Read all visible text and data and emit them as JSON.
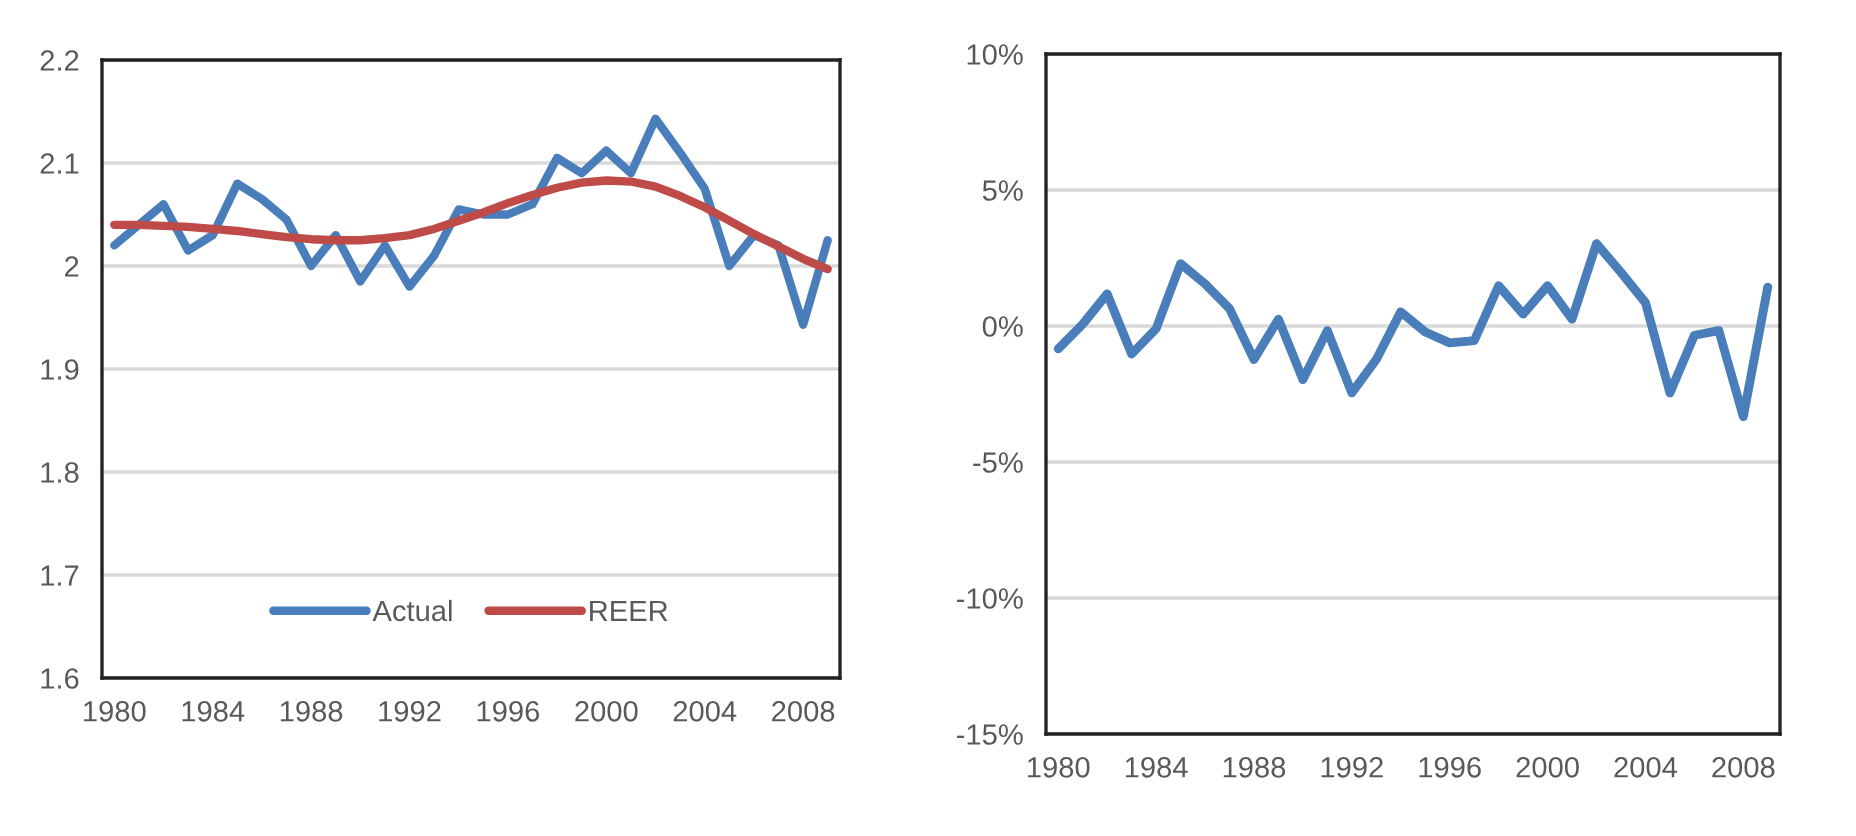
{
  "chart_data": [
    {
      "type": "line",
      "x": [
        1980,
        1981,
        1982,
        1983,
        1984,
        1985,
        1986,
        1987,
        1988,
        1989,
        1990,
        1991,
        1992,
        1993,
        1994,
        1995,
        1996,
        1997,
        1998,
        1999,
        2000,
        2001,
        2002,
        2003,
        2004,
        2005,
        2006,
        2007,
        2008,
        2009
      ],
      "series": [
        {
          "name": "Actual",
          "color": "#4a7ebb",
          "values": [
            2.02,
            2.04,
            2.06,
            2.015,
            2.03,
            2.08,
            2.065,
            2.045,
            2.0,
            2.03,
            1.985,
            2.02,
            1.98,
            2.01,
            2.055,
            2.05,
            2.05,
            2.06,
            2.105,
            2.09,
            2.112,
            2.09,
            2.143,
            2.11,
            2.075,
            2.0,
            2.03,
            2.02,
            1.943,
            2.025
          ]
        },
        {
          "name": "REER",
          "color": "#be4b48",
          "values": [
            2.04,
            2.04,
            2.039,
            2.038,
            2.036,
            2.034,
            2.031,
            2.028,
            2.026,
            2.025,
            2.025,
            2.027,
            2.03,
            2.036,
            2.044,
            2.052,
            2.061,
            2.069,
            2.076,
            2.081,
            2.083,
            2.082,
            2.077,
            2.068,
            2.057,
            2.044,
            2.031,
            2.019,
            2.007,
            1.997
          ]
        }
      ],
      "xlim": [
        1979.5,
        2009.5
      ],
      "xticks": [
        1980,
        1984,
        1988,
        1992,
        1996,
        2000,
        2004,
        2008
      ],
      "ylim": [
        1.6,
        2.2
      ],
      "yticks": [
        1.6,
        1.7,
        1.8,
        1.9,
        2,
        2.1,
        2.2
      ],
      "grid": "y",
      "legend": "bottom",
      "marker": "none",
      "line_style": "solid"
    },
    {
      "type": "line",
      "x": [
        1980,
        1981,
        1982,
        1983,
        1984,
        1985,
        1986,
        1987,
        1988,
        1989,
        1990,
        1991,
        1992,
        1993,
        1994,
        1995,
        1996,
        1997,
        1998,
        1999,
        2000,
        2001,
        2002,
        2003,
        2004,
        2005,
        2006,
        2007,
        2008,
        2009
      ],
      "series": [
        {
          "color": "#4a7ebb",
          "values": [
            -0.84,
            0.07,
            1.18,
            -1.03,
            -0.1,
            2.29,
            1.55,
            0.64,
            -1.23,
            0.25,
            -1.97,
            -0.17,
            -2.46,
            -1.23,
            0.52,
            -0.22,
            -0.62,
            -0.54,
            1.48,
            0.44,
            1.48,
            0.25,
            3.03,
            1.97,
            0.86,
            -2.46,
            -0.34,
            -0.17,
            -3.33,
            1.43
          ]
        }
      ],
      "xlim": [
        1979.5,
        2009.5
      ],
      "xticks": [
        1980,
        1984,
        1988,
        1992,
        1996,
        2000,
        2004,
        2008
      ],
      "ylim": [
        -15,
        10
      ],
      "yticks": [
        {
          "value": -15,
          "label": "-15%"
        },
        {
          "value": -10,
          "label": "-10%"
        },
        {
          "value": -5,
          "label": "-5%"
        },
        {
          "value": 0,
          "label": "0%"
        },
        {
          "value": 5,
          "label": "5%"
        },
        {
          "value": 10,
          "label": "10%"
        }
      ],
      "grid": "y",
      "marker": "none",
      "line_style": "solid"
    }
  ]
}
